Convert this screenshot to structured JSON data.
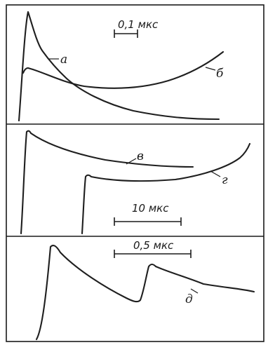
{
  "panels": [
    {
      "scale_label": "0,1 мкс",
      "curves": [
        {
          "label": "а"
        },
        {
          "label": "б"
        }
      ]
    },
    {
      "scale_label": "10 мкс",
      "curves": [
        {
          "label": "в"
        },
        {
          "label": "г"
        }
      ]
    },
    {
      "scale_label": "0,5 мкс",
      "curves": [
        {
          "label": "д"
        }
      ]
    }
  ]
}
